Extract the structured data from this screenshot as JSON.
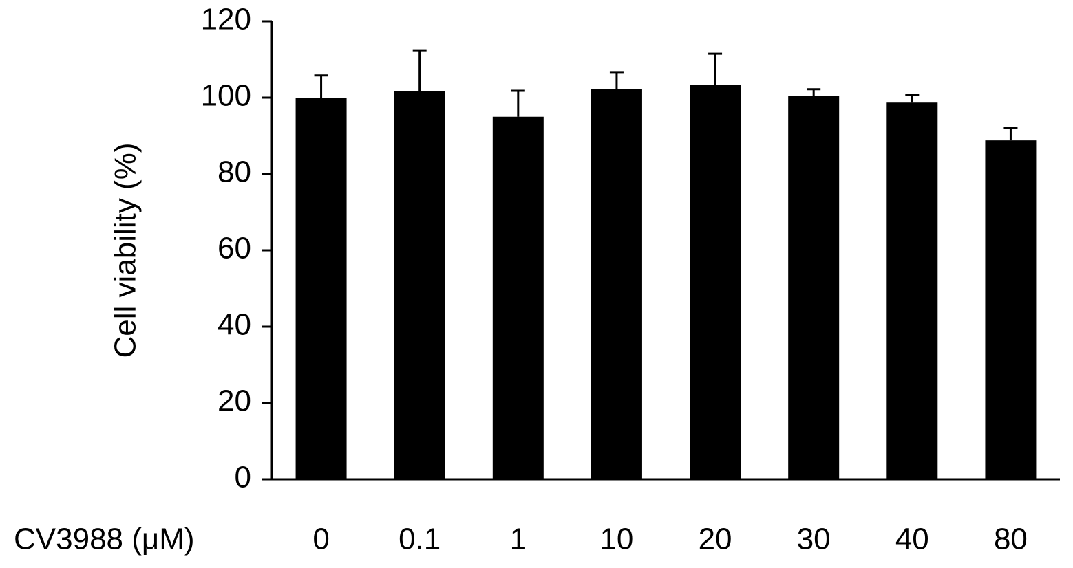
{
  "chart_data": {
    "type": "bar",
    "y_label": "Cell viability (%)",
    "x_label": "CV3988 (μM)",
    "categories": [
      "0",
      "0.1",
      "1",
      "10",
      "20",
      "30",
      "40",
      "80"
    ],
    "values": [
      100,
      101.8,
      95,
      102.2,
      103.4,
      100.4,
      98.7,
      88.8
    ],
    "errors": [
      5.8,
      10.6,
      6.8,
      4.5,
      8.1,
      1.8,
      2.0,
      3.3
    ],
    "color": "#000000",
    "ylim": [
      0,
      120
    ],
    "yticks": [
      0,
      20,
      40,
      60,
      80,
      100,
      120
    ],
    "grid": false
  }
}
